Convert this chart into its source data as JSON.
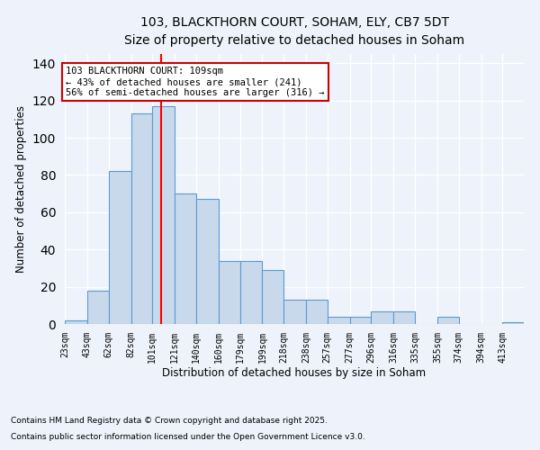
{
  "title_line1": "103, BLACKTHORN COURT, SOHAM, ELY, CB7 5DT",
  "title_line2": "Size of property relative to detached houses in Soham",
  "xlabel": "Distribution of detached houses by size in Soham",
  "ylabel": "Number of detached properties",
  "bins": [
    23,
    43,
    62,
    82,
    101,
    121,
    140,
    160,
    179,
    199,
    218,
    238,
    257,
    277,
    296,
    316,
    335,
    355,
    374,
    394,
    413
  ],
  "heights": [
    2,
    18,
    82,
    113,
    117,
    70,
    67,
    34,
    34,
    29,
    13,
    13,
    4,
    4,
    7,
    7,
    0,
    4,
    0,
    0,
    1
  ],
  "bar_color": "#c9d9ec",
  "bar_edge_color": "#5b9bd5",
  "red_line_x": 109,
  "annotation_title": "103 BLACKTHORN COURT: 109sqm",
  "annotation_line2": "← 43% of detached houses are smaller (241)",
  "annotation_line3": "56% of semi-detached houses are larger (316) →",
  "annotation_box_color": "#ffffff",
  "annotation_box_edge": "#cc0000",
  "ylim": [
    0,
    145
  ],
  "yticks": [
    0,
    20,
    40,
    60,
    80,
    100,
    120,
    140
  ],
  "footnote1": "Contains HM Land Registry data © Crown copyright and database right 2025.",
  "footnote2": "Contains public sector information licensed under the Open Government Licence v3.0.",
  "background_color": "#eef2fa",
  "grid_color": "#ffffff"
}
